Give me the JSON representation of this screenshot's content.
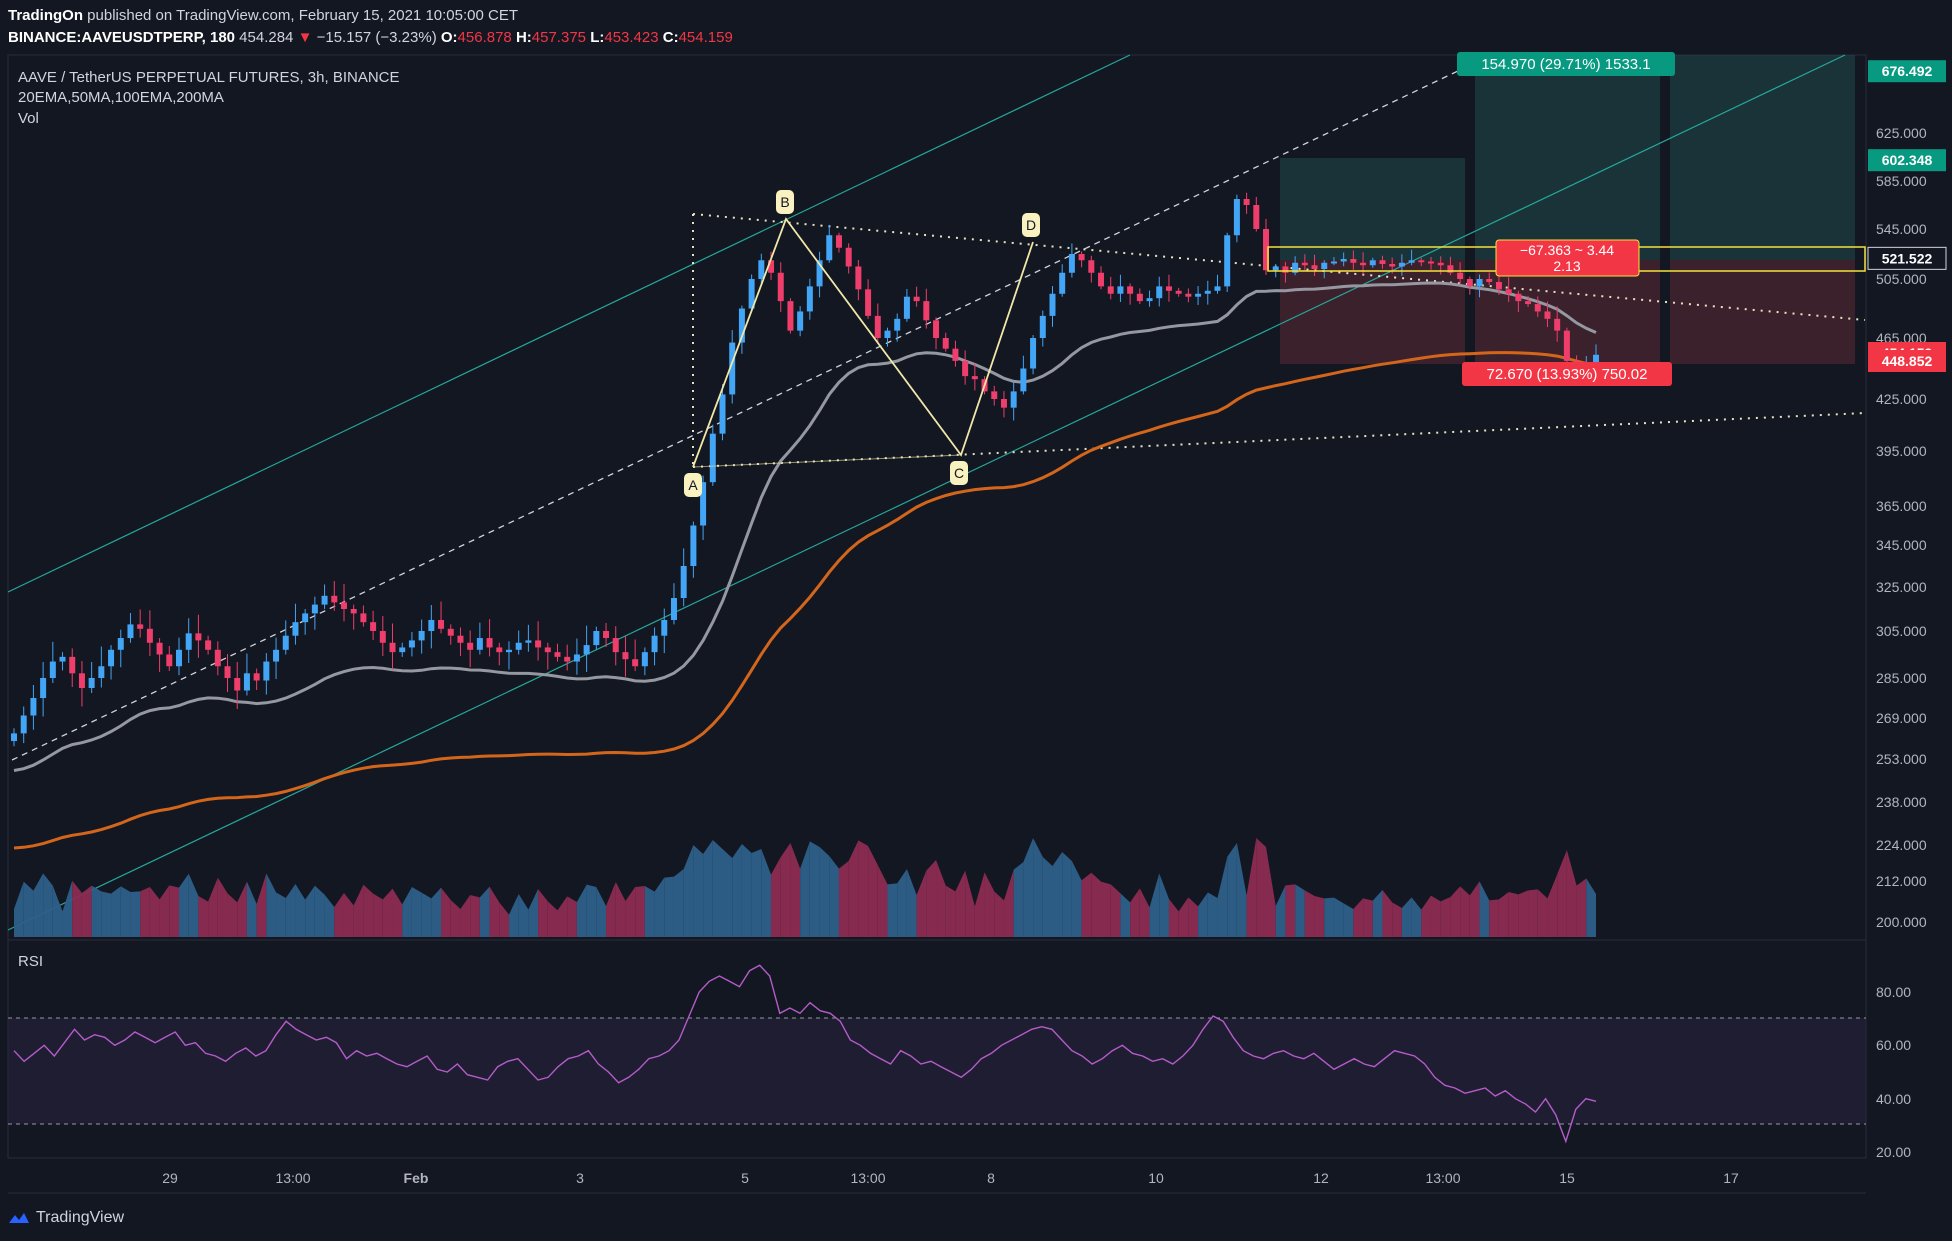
{
  "header": {
    "publisher": "TradingOn",
    "published_text": "published on TradingView.com, February 15, 2021 10:05:00 CET",
    "symbol": "BINANCE:AAVEUSDTPERP, 180",
    "last": "454.284",
    "change": "−15.157 (−3.23%)",
    "o_label": "O:",
    "o": "456.878",
    "h_label": "H:",
    "h": "457.375",
    "l_label": "L:",
    "l": "453.423",
    "c_label": "C:",
    "c": "454.159"
  },
  "legend": {
    "title": "AAVE / TetherUS PERPETUAL FUTURES, 3h, BINANCE",
    "indicators": "20EMA,50MA,100EMA,200MA",
    "vol": "Vol",
    "rsi": "RSI"
  },
  "footer": {
    "brand": "TradingView"
  },
  "colors": {
    "background": "#131722",
    "up": "#26a69a",
    "up_candle": "#42a5f5",
    "down_candle": "#ef3e6b",
    "ema_gray": "#9598a1",
    "ema_orange": "#d4661c",
    "rsi_line": "#b45cc8",
    "channel": "#26a69a",
    "pattern": "#f0e7a8"
  },
  "chart_data": {
    "type": "candlestick",
    "symbol": "AAVEUSDTPERP",
    "interval": "3h",
    "price_axis": [
      "625.000",
      "585.000",
      "545.000",
      "505.000",
      "465.000",
      "425.000",
      "395.000",
      "365.000",
      "345.000",
      "325.000",
      "305.000",
      "285.000",
      "269.000",
      "253.000",
      "238.000",
      "224.000",
      "212.000",
      "200.000"
    ],
    "price_axis_values": [
      625,
      585,
      545,
      505,
      465,
      425,
      395,
      365,
      345,
      325,
      305,
      285,
      269,
      253,
      238,
      224,
      212,
      200
    ],
    "price_labels": [
      {
        "text": "676.492",
        "value": 676.492,
        "color": "#089981"
      },
      {
        "text": "602.348",
        "value": 602.348,
        "color": "#089981"
      },
      {
        "text": "521.522",
        "value": 521.522,
        "color": "#131722"
      },
      {
        "text": "454.159",
        "value": 454.159,
        "color": "#f23645"
      },
      {
        "text": "448.852",
        "value": 448.852,
        "color": "#f23645"
      }
    ],
    "time_axis": [
      "29",
      "13:00",
      "Feb",
      "3",
      "5",
      "13:00",
      "8",
      "10",
      "12",
      "13:00",
      "15",
      "17"
    ],
    "rsi_axis": [
      "80.00",
      "60.00",
      "40.00",
      "20.00"
    ],
    "rsi_axis_values": [
      80,
      60,
      40,
      20
    ],
    "rsi_bands": [
      70,
      30
    ],
    "annotations": {
      "pattern_points": [
        {
          "label": "A",
          "price": 388
        },
        {
          "label": "B",
          "price": 550
        },
        {
          "label": "C",
          "price": 393
        },
        {
          "label": "D",
          "price": 533
        }
      ],
      "long_target_label": "154.970 (29.71%) 1533.1",
      "stop_label": "72.670 (13.93%) 750.02",
      "ratio_label_1": "−67.363 ~ 3.44",
      "ratio_label_2": "2.13"
    },
    "close_path": [
      263,
      270,
      277,
      285,
      292,
      294,
      287,
      281,
      285,
      290,
      297,
      302,
      308,
      306,
      300,
      295,
      290,
      297,
      304,
      301,
      297,
      290,
      285,
      280,
      287,
      284,
      292,
      297,
      303,
      309,
      313,
      317,
      321,
      318,
      315,
      313,
      309,
      305,
      300,
      296,
      298,
      301,
      305,
      310,
      306,
      303,
      300,
      297,
      302,
      298,
      296,
      297,
      300,
      301,
      298,
      296,
      294,
      292,
      295,
      299,
      305,
      302,
      296,
      293,
      290,
      296,
      303,
      310,
      320,
      335,
      355,
      378,
      405,
      428,
      462,
      485,
      505,
      520,
      510,
      490,
      470,
      483,
      500,
      520,
      540,
      530,
      515,
      498,
      480,
      465,
      470,
      478,
      493,
      490,
      477,
      465,
      458,
      450,
      440,
      438,
      430,
      425,
      420,
      430,
      445,
      465,
      480,
      495,
      510,
      525,
      520,
      510,
      500,
      495,
      500,
      495,
      490,
      492,
      500,
      497,
      495,
      493,
      495,
      497,
      500,
      540,
      570,
      565,
      545,
      512,
      515,
      510,
      518,
      516,
      513,
      518,
      519,
      521,
      518,
      516,
      520,
      517,
      515,
      518,
      520,
      519,
      518,
      516,
      510,
      505,
      500,
      505,
      503,
      498,
      495,
      490,
      488,
      483,
      478,
      470,
      450,
      440,
      448,
      454
    ],
    "rsi_path": [
      58,
      54,
      57,
      60,
      56,
      61,
      66,
      62,
      64,
      63,
      60,
      62,
      65,
      63,
      61,
      63,
      65,
      60,
      61,
      57,
      56,
      54,
      57,
      59,
      56,
      58,
      64,
      69,
      66,
      64,
      62,
      63,
      61,
      55,
      58,
      56,
      57,
      55,
      53,
      52,
      54,
      56,
      51,
      50,
      53,
      49,
      48,
      47,
      52,
      54,
      55,
      51,
      47,
      48,
      52,
      55,
      56,
      58,
      53,
      50,
      46,
      48,
      51,
      55,
      56,
      58,
      62,
      71,
      80,
      84,
      86,
      84,
      82,
      88,
      90,
      86,
      72,
      74,
      72,
      76,
      73,
      72,
      69,
      62,
      60,
      57,
      55,
      53,
      58,
      56,
      53,
      54,
      52,
      50,
      48,
      51,
      55,
      57,
      60,
      62,
      64,
      66,
      67,
      66,
      62,
      58,
      56,
      53,
      55,
      58,
      60,
      57,
      56,
      54,
      55,
      53,
      56,
      60,
      66,
      71,
      69,
      63,
      58,
      56,
      55,
      57,
      58,
      56,
      55,
      57,
      54,
      51,
      53,
      55,
      53,
      52,
      55,
      58,
      57,
      56,
      53,
      48,
      45,
      44,
      42,
      43,
      44,
      41,
      43,
      40,
      38,
      35,
      40,
      34,
      24,
      36,
      40,
      39
    ]
  }
}
